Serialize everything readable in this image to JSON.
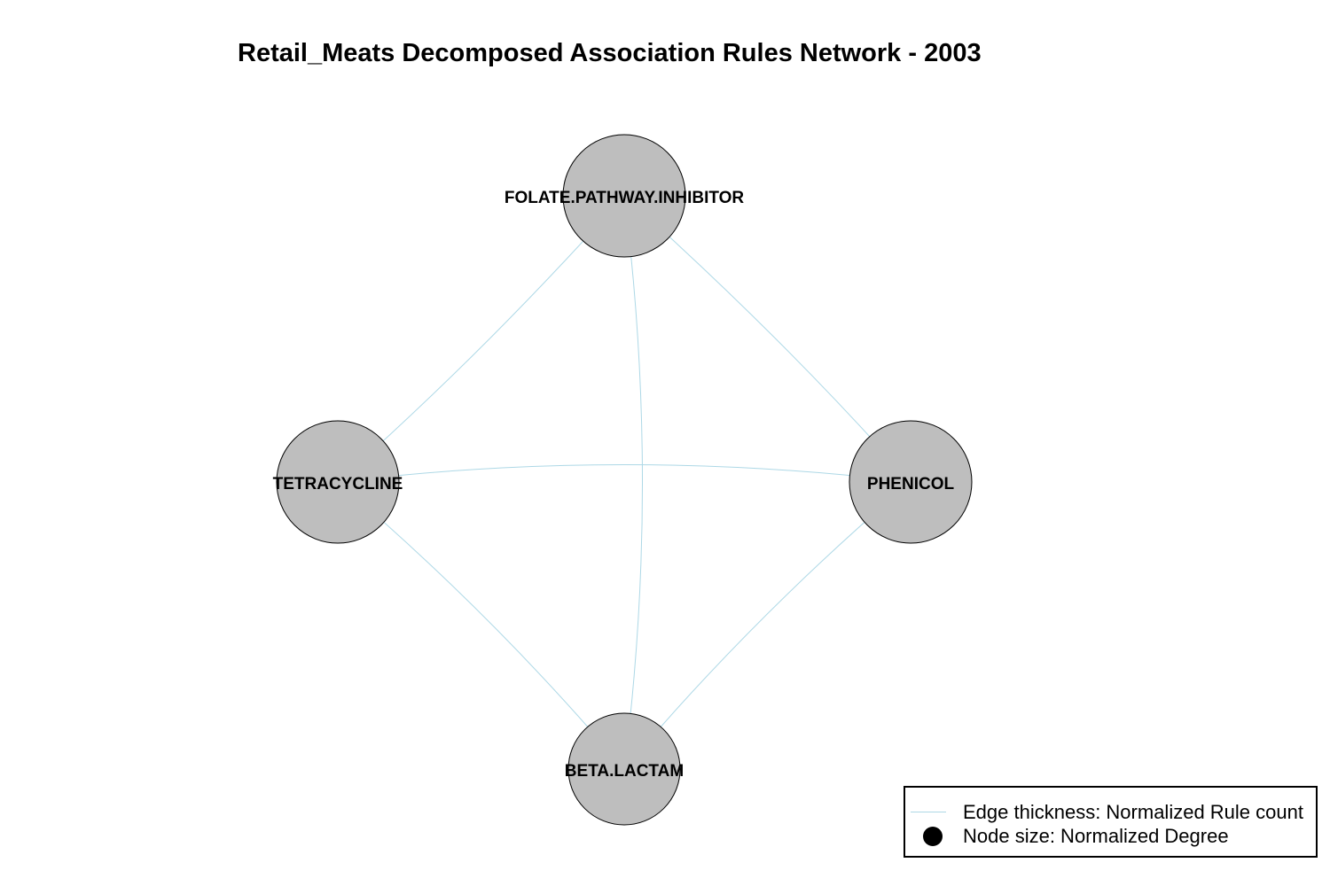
{
  "title": "Retail_Meats Decomposed Association Rules Network - 2003",
  "colors": {
    "node_fill": "#bebebe",
    "node_stroke": "#000000",
    "edge": "#add8e6",
    "legend_dot": "#000000"
  },
  "nodes": [
    {
      "id": "folate",
      "label": "FOLATE.PATHWAY.INHIBITOR"
    },
    {
      "id": "tetracycline",
      "label": "TETRACYCLINE"
    },
    {
      "id": "phenicol",
      "label": "PHENICOL"
    },
    {
      "id": "betalactam",
      "label": "BETA.LACTAM"
    }
  ],
  "edges": [
    {
      "from": "folate",
      "to": "tetracycline"
    },
    {
      "from": "folate",
      "to": "phenicol"
    },
    {
      "from": "folate",
      "to": "betalactam"
    },
    {
      "from": "tetracycline",
      "to": "phenicol"
    },
    {
      "from": "tetracycline",
      "to": "betalactam"
    },
    {
      "from": "phenicol",
      "to": "betalactam"
    }
  ],
  "legend": {
    "edge_label": "Edge thickness: Normalized Rule count",
    "node_label": "Node size: Normalized Degree"
  }
}
